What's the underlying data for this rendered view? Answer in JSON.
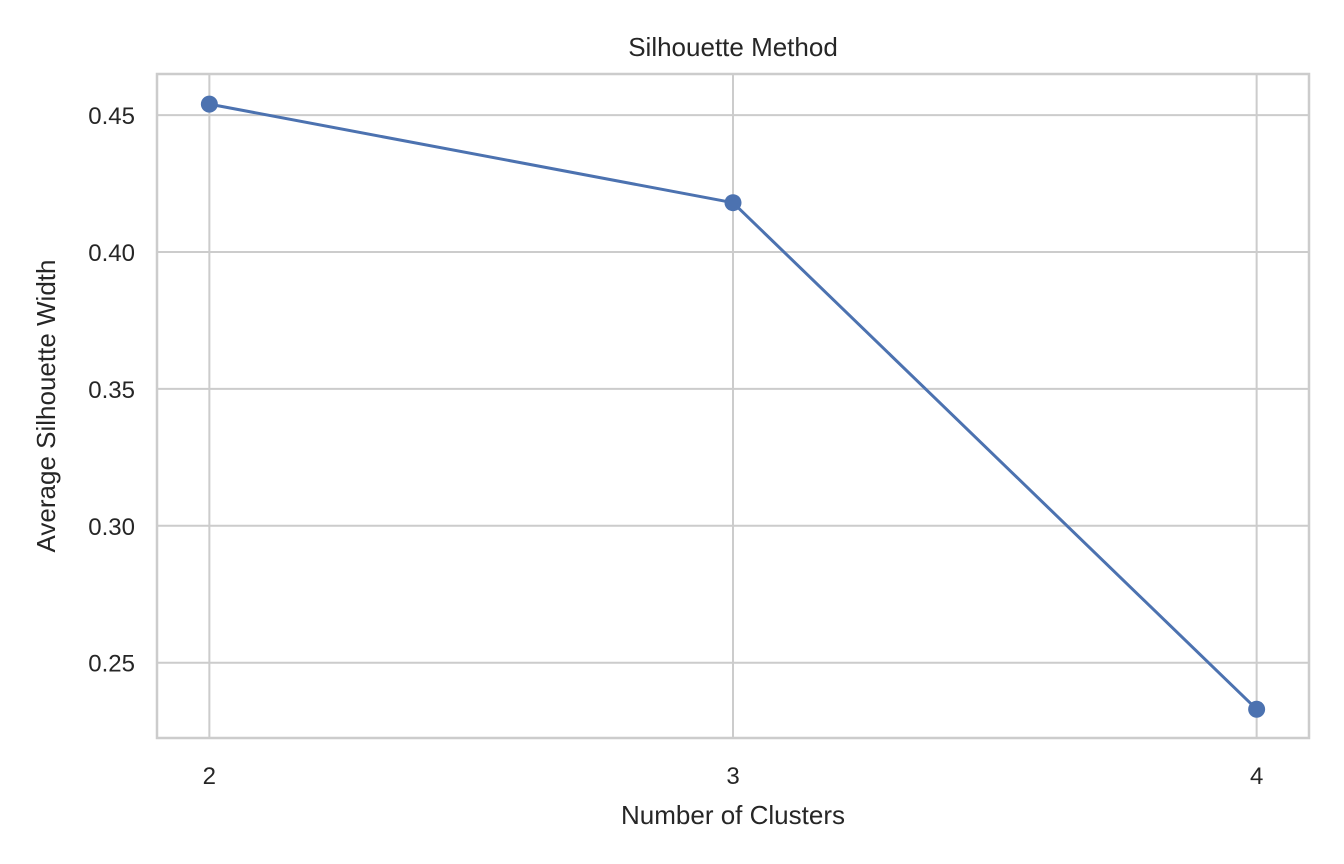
{
  "chart_data": {
    "type": "line",
    "title": "Silhouette Method",
    "xlabel": "Number of Clusters",
    "ylabel": "Average Silhouette Width",
    "x": [
      2,
      3,
      4
    ],
    "series": [
      {
        "values": [
          0.454,
          0.418,
          0.233
        ],
        "color": "#4c72b0",
        "marker": "circle"
      }
    ],
    "xticks": [
      2,
      3,
      4
    ],
    "xtick_labels": [
      "2",
      "3",
      "4"
    ],
    "yticks": [
      0.25,
      0.3,
      0.35,
      0.4,
      0.45
    ],
    "ytick_labels": [
      "0.25",
      "0.30",
      "0.35",
      "0.40",
      "0.45"
    ],
    "xlim": [
      1.9,
      4.1
    ],
    "ylim": [
      0.2225,
      0.465
    ],
    "grid": true,
    "legend": "none"
  },
  "colors": {
    "line": "#4c72b0",
    "grid": "#cccccc",
    "text": "#262626",
    "background": "#ffffff"
  }
}
